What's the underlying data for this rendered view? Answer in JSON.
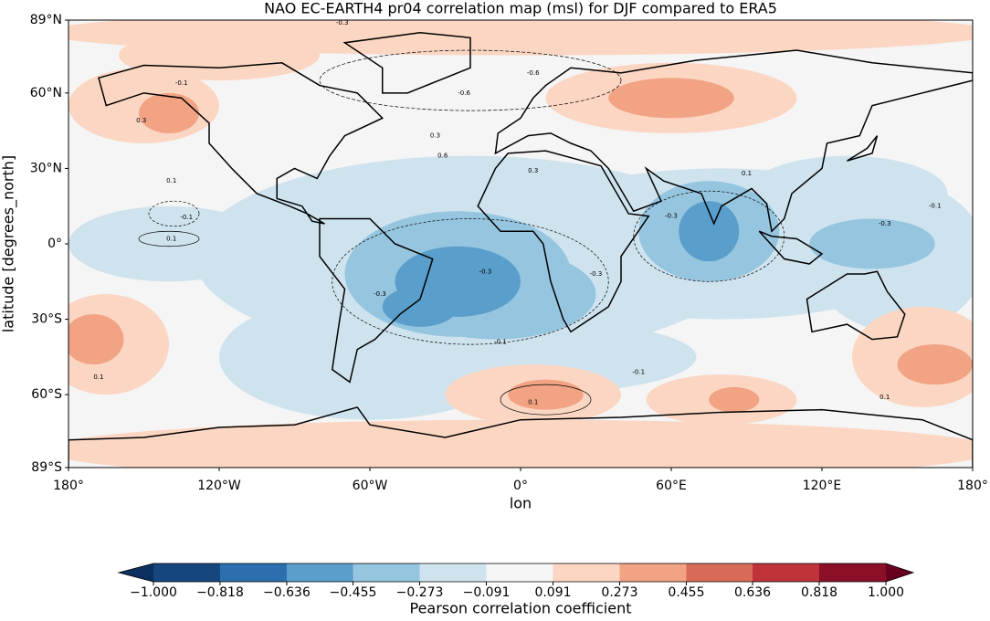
{
  "chart_data": {
    "type": "map",
    "title": "NAO EC-EARTH4 pr04 correlation map (msl) for DJF compared to ERA5",
    "x_label": "lon",
    "y_label": "latitude [degrees_north]",
    "xlim": [
      -180,
      180
    ],
    "ylim": [
      -89,
      89
    ],
    "xticks": [
      {
        "value": -180,
        "label": "180°"
      },
      {
        "value": -120,
        "label": "120°W"
      },
      {
        "value": -60,
        "label": "60°W"
      },
      {
        "value": 0,
        "label": "0°"
      },
      {
        "value": 60,
        "label": "60°E"
      },
      {
        "value": 120,
        "label": "120°E"
      },
      {
        "value": 180,
        "label": "180°"
      }
    ],
    "yticks": [
      {
        "value": -89,
        "label": "89°S"
      },
      {
        "value": -60,
        "label": "60°S"
      },
      {
        "value": -30,
        "label": "30°S"
      },
      {
        "value": 0,
        "label": "0°"
      },
      {
        "value": 30,
        "label": "30°N"
      },
      {
        "value": 60,
        "label": "60°N"
      },
      {
        "value": 89,
        "label": "89°N"
      }
    ],
    "contour_labels": [
      {
        "lon": -71,
        "lat": 88,
        "value": -0.3
      },
      {
        "lon": -22.5,
        "lat": 60,
        "value": -0.6
      },
      {
        "lon": 5,
        "lat": 68,
        "value": -0.6
      },
      {
        "lon": -135,
        "lat": 64,
        "value": -0.1
      },
      {
        "lon": -151,
        "lat": 49,
        "value": 0.3
      },
      {
        "lon": -34,
        "lat": 43,
        "value": 0.3
      },
      {
        "lon": -31,
        "lat": 35,
        "value": 0.6
      },
      {
        "lon": -139,
        "lat": 25,
        "value": 0.1
      },
      {
        "lon": -133,
        "lat": 10.5,
        "value": -0.1
      },
      {
        "lon": -139,
        "lat": 2,
        "value": 0.1
      },
      {
        "lon": 5,
        "lat": 29,
        "value": 0.3
      },
      {
        "lon": -14,
        "lat": -11,
        "value": -0.3
      },
      {
        "lon": -56,
        "lat": -20,
        "value": -0.3
      },
      {
        "lon": 30,
        "lat": -12,
        "value": -0.3
      },
      {
        "lon": 60,
        "lat": 11,
        "value": -0.3
      },
      {
        "lon": 145,
        "lat": 8,
        "value": -0.3
      },
      {
        "lon": 165,
        "lat": 15,
        "value": -0.1
      },
      {
        "lon": -8,
        "lat": -39,
        "value": -0.1
      },
      {
        "lon": -168,
        "lat": -53,
        "value": 0.1
      },
      {
        "lon": 5,
        "lat": -63,
        "value": 0.1
      },
      {
        "lon": 145,
        "lat": -61,
        "value": 0.1
      },
      {
        "lon": 47,
        "lat": -51,
        "value": -0.1
      },
      {
        "lon": 90,
        "lat": 28,
        "value": 0.1
      }
    ],
    "colorbar": {
      "label": "Pearson correlation coefficient",
      "ticks": [
        {
          "value": -1,
          "label": "−1.000"
        },
        {
          "value": -0.818,
          "label": "−0.818"
        },
        {
          "value": -0.636,
          "label": "−0.636"
        },
        {
          "value": -0.455,
          "label": "−0.455"
        },
        {
          "value": -0.273,
          "label": "−0.273"
        },
        {
          "value": -0.091,
          "label": "−0.091"
        },
        {
          "value": 0.091,
          "label": "0.091"
        },
        {
          "value": 0.273,
          "label": "0.273"
        },
        {
          "value": 0.455,
          "label": "0.455"
        },
        {
          "value": 0.636,
          "label": "0.636"
        },
        {
          "value": 0.818,
          "label": "0.818"
        },
        {
          "value": 1,
          "label": "1.000"
        }
      ],
      "colors": [
        "#15477e",
        "#2c6fae",
        "#5a9ecb",
        "#96c5df",
        "#cfe3ef",
        "#f5f5f5",
        "#fbd6c3",
        "#f2a384",
        "#d86b58",
        "#c1333a",
        "#8a0f27"
      ],
      "under_color": "#0b2f5e",
      "over_color": "#67001f"
    }
  }
}
